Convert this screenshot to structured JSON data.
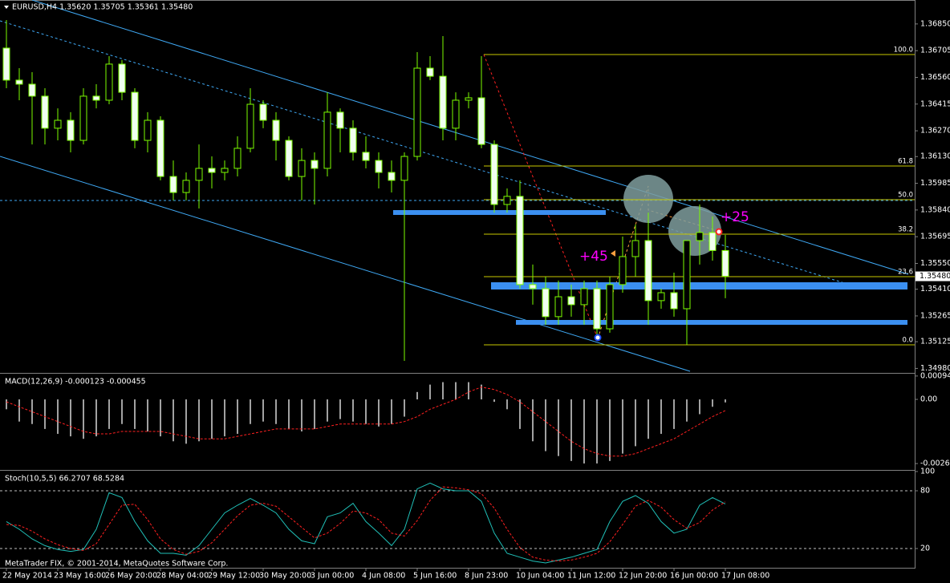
{
  "header": {
    "title": "EURUSD,H4  1.35620 1.35705 1.35361 1.35480"
  },
  "chart_data": [
    {
      "type": "candlestick",
      "categories": [
        "22 May 2014",
        null,
        null,
        null,
        "23 May 16:00",
        null,
        null,
        null,
        "26 May 20:00",
        null,
        null,
        null,
        "28 May 04:00",
        null,
        null,
        null,
        "29 May 12:00",
        null,
        null,
        null,
        "30 May 20:00",
        null,
        null,
        null,
        "3 Jun 00:00",
        null,
        null,
        null,
        "4 Jun 08:00",
        null,
        null,
        null,
        "5 Jun 16:00",
        null,
        null,
        null,
        "8 Jun 23:00",
        null,
        null,
        null,
        "10 Jun 04:00",
        null,
        null,
        null,
        "11 Jun 12:00",
        null,
        null,
        null,
        "12 Jun 20:00",
        null,
        null,
        null,
        "16 Jun 00:00",
        null,
        null,
        null,
        "17 Jun 08:00"
      ],
      "open": [
        1.36719,
        1.36545,
        1.36523,
        1.36458,
        1.36284,
        1.36327,
        1.36218,
        1.36458,
        1.36436,
        1.36632,
        1.36479,
        1.36218,
        1.36327,
        1.36022,
        1.35935,
        1.36001,
        1.36066,
        1.36044,
        1.36066,
        1.36175,
        1.36414,
        1.36327,
        1.36218,
        1.36022,
        1.36109,
        1.36066,
        1.36371,
        1.36284,
        1.36153,
        1.36109,
        1.36044,
        1.36001,
        1.36131,
        1.3661,
        1.36566,
        1.36284,
        1.36436,
        1.36449,
        1.36196,
        1.3587,
        1.35914,
        1.35435,
        1.35413,
        1.35261,
        1.35369,
        1.35326,
        1.35413,
        1.35195,
        1.35435,
        1.35587,
        1.35674,
        1.35348,
        1.35391,
        1.35304,
        1.35674,
        1.35718,
        1.3562
      ],
      "high": [
        1.36871,
        1.3661,
        1.36588,
        1.36501,
        1.36392,
        1.36371,
        1.36501,
        1.36523,
        1.36675,
        1.36654,
        1.36501,
        1.36371,
        1.36349,
        1.36109,
        1.36044,
        1.36196,
        1.36131,
        1.36109,
        1.3624,
        1.36501,
        1.36436,
        1.36371,
        1.3624,
        1.36175,
        1.36153,
        1.36479,
        1.36392,
        1.36327,
        1.3624,
        1.36153,
        1.36109,
        1.36153,
        1.36697,
        1.36675,
        1.36784,
        1.36479,
        1.36479,
        1.36675,
        1.36218,
        1.35957,
        1.36001,
        1.35544,
        1.35478,
        1.35457,
        1.35435,
        1.35457,
        1.35457,
        1.35478,
        1.35696,
        1.35761,
        1.35826,
        1.35413,
        1.355,
        1.35674,
        1.3587,
        1.35805,
        1.35705
      ],
      "low": [
        1.36501,
        1.36436,
        1.36196,
        1.36196,
        1.36218,
        1.36153,
        1.36196,
        1.36392,
        1.36414,
        1.36436,
        1.36175,
        1.36153,
        1.36001,
        1.35892,
        1.35892,
        1.35848,
        1.35957,
        1.36001,
        1.36022,
        1.36153,
        1.36284,
        1.36109,
        1.36001,
        1.35892,
        1.3587,
        1.36022,
        1.36153,
        1.36109,
        1.36066,
        1.35957,
        1.35935,
        1.35021,
        1.36109,
        1.36545,
        1.36218,
        1.36218,
        1.36392,
        1.36175,
        1.35826,
        1.35826,
        1.35413,
        1.35326,
        1.35217,
        1.35217,
        1.35261,
        1.35217,
        1.3513,
        1.35174,
        1.35391,
        1.35478,
        1.35217,
        1.35304,
        1.35261,
        1.35108,
        1.35544,
        1.35565,
        1.35361
      ],
      "close": [
        1.36545,
        1.36523,
        1.36458,
        1.36284,
        1.36327,
        1.36218,
        1.36458,
        1.36436,
        1.36632,
        1.36479,
        1.36218,
        1.36327,
        1.36022,
        1.35935,
        1.36001,
        1.36066,
        1.36044,
        1.36066,
        1.36175,
        1.36414,
        1.36327,
        1.36218,
        1.36022,
        1.36109,
        1.36066,
        1.36371,
        1.36284,
        1.36153,
        1.36109,
        1.36044,
        1.36001,
        1.36131,
        1.3661,
        1.36566,
        1.36284,
        1.36436,
        1.36449,
        1.36196,
        1.3587,
        1.35914,
        1.35435,
        1.35413,
        1.35261,
        1.35369,
        1.35326,
        1.35413,
        1.35195,
        1.35435,
        1.35587,
        1.35674,
        1.35348,
        1.35391,
        1.35304,
        1.35674,
        1.35718,
        1.3562,
        1.3548
      ],
      "color": "#7cfc00",
      "ylim": [
        1.3496,
        1.3698
      ],
      "yticks": [
        {
          "value": 1.3685,
          "label": "1.36850"
        },
        1.36705,
        {
          "value": 1.3656,
          "label": "1.36560"
        },
        1.36415,
        {
          "value": 1.3627,
          "label": "1.36270"
        },
        {
          "value": 1.3613,
          "label": "1.36130"
        },
        1.35985,
        {
          "value": 1.3584,
          "label": "1.35840"
        },
        1.35695,
        {
          "value": 1.3555,
          "label": "1.35550"
        },
        {
          "value": 1.3541,
          "label": "1.35410"
        },
        1.35265,
        1.35125,
        {
          "value": 1.3498,
          "label": "1.34980"
        }
      ],
      "current_price_label": "1.35480",
      "fib_levels": [
        "100.0",
        "61.8",
        "50.0",
        "38.2",
        "23.6",
        "0.0"
      ],
      "annotations": [
        "+45",
        "+25"
      ]
    },
    {
      "type": "macd",
      "title": "MACD(12,26,9) -0.000123 -0.000455",
      "histogram": [
        -0.0004,
        -0.0009,
        -0.001,
        -0.0012,
        -0.0014,
        -0.0015,
        -0.0016,
        -0.0015,
        -0.0012,
        -0.001,
        -0.0012,
        -0.0013,
        -0.0015,
        -0.0017,
        -0.0018,
        -0.0017,
        -0.0016,
        -0.0015,
        -0.0014,
        -0.001,
        -0.0009,
        -0.001,
        -0.0012,
        -0.0013,
        -0.0012,
        -0.0009,
        -0.0008,
        -0.0009,
        -0.001,
        -0.0011,
        -0.001,
        -0.0007,
        0.0003,
        0.0006,
        0.0007,
        0.0007,
        0.0007,
        0.0006,
        -0.0001,
        -0.0004,
        -0.0012,
        -0.0017,
        -0.0021,
        -0.0023,
        -0.0025,
        -0.0026,
        -0.0026,
        -0.0025,
        -0.0022,
        -0.0019,
        -0.0016,
        -0.0014,
        -0.0012,
        -0.0009,
        -0.0006,
        -0.0003,
        -0.000123
      ],
      "signal": [
        -0.0001,
        -0.0003,
        -0.0005,
        -0.0007,
        -0.0009,
        -0.0011,
        -0.0013,
        -0.0014,
        -0.0014,
        -0.0013,
        -0.0013,
        -0.0013,
        -0.0013,
        -0.0014,
        -0.0015,
        -0.0016,
        -0.0016,
        -0.0016,
        -0.0015,
        -0.0014,
        -0.0013,
        -0.0012,
        -0.0012,
        -0.0012,
        -0.0012,
        -0.0011,
        -0.001,
        -0.001,
        -0.001,
        -0.001,
        -0.001,
        -0.0009,
        -0.0007,
        -0.0004,
        -0.0002,
        0.0,
        0.0003,
        0.0005,
        0.0004,
        0.0002,
        -0.0001,
        -0.0005,
        -0.0009,
        -0.0013,
        -0.0017,
        -0.002,
        -0.0022,
        -0.0023,
        -0.0023,
        -0.0022,
        -0.002,
        -0.0018,
        -0.0016,
        -0.0013,
        -0.001,
        -0.0007,
        -0.000455
      ],
      "color": "#d8d8d8",
      "signal_color": "#ff2020",
      "ylim": [
        -0.00283,
        0.00101
      ],
      "yticks": [
        0.000949,
        {
          "value": 0,
          "label": "0.00"
        },
        -0.002604
      ]
    },
    {
      "type": "stochastic",
      "title": "Stoch(10,5,5) 66.2707 68.5284",
      "main": [
        48,
        40,
        30,
        23,
        19,
        17,
        19,
        40,
        78,
        73,
        48,
        28,
        15,
        15,
        13,
        23,
        40,
        57,
        65,
        72,
        65,
        57,
        40,
        28,
        25,
        53,
        57,
        67,
        48,
        36,
        23,
        40,
        82,
        88,
        82,
        80,
        80,
        69,
        36,
        15,
        11,
        7,
        5,
        8,
        11,
        15,
        19,
        48,
        69,
        75,
        67,
        48,
        36,
        40,
        65,
        73,
        66.2707
      ],
      "signal": [
        45,
        44,
        38,
        30,
        24,
        20,
        18,
        25,
        45,
        65,
        66,
        50,
        30,
        19,
        14,
        17,
        26,
        40,
        54,
        65,
        67,
        64,
        53,
        42,
        31,
        36,
        46,
        59,
        57,
        50,
        36,
        33,
        49,
        70,
        84,
        83,
        81,
        77,
        62,
        40,
        21,
        11,
        8,
        7,
        8,
        11,
        15,
        27,
        45,
        64,
        70,
        63,
        50,
        41,
        47,
        60,
        68.5284
      ],
      "color": "#20c0b8",
      "signal_color": "#ff2020",
      "ylim": [
        0,
        100
      ],
      "yticks": [
        100,
        80,
        20
      ],
      "levels": [
        80,
        20
      ]
    }
  ],
  "footer": "MetaTrader FIX, © 2001-2014, MetaQuotes Software Corp."
}
